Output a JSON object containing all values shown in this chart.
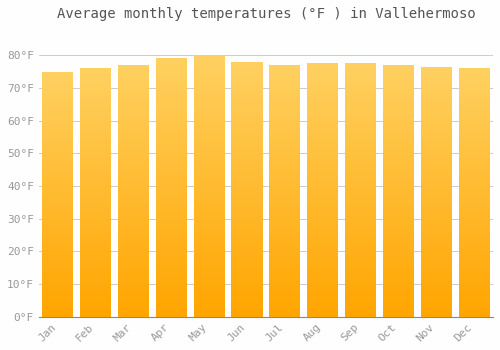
{
  "title": "Average monthly temperatures (°F ) in Vallehermoso",
  "months": [
    "Jan",
    "Feb",
    "Mar",
    "Apr",
    "May",
    "Jun",
    "Jul",
    "Aug",
    "Sep",
    "Oct",
    "Nov",
    "Dec"
  ],
  "values": [
    75.0,
    76.0,
    77.0,
    79.0,
    80.0,
    78.0,
    77.0,
    77.5,
    77.5,
    77.0,
    76.5,
    76.0
  ],
  "bar_color_top": "#FFD060",
  "bar_color_bottom": "#FFA500",
  "background_color": "#FEFEFE",
  "grid_color": "#CCCCCC",
  "ylim": [
    0,
    88
  ],
  "yticks": [
    0,
    10,
    20,
    30,
    40,
    50,
    60,
    70,
    80
  ],
  "ytick_labels": [
    "0°F",
    "10°F",
    "20°F",
    "30°F",
    "40°F",
    "50°F",
    "60°F",
    "70°F",
    "80°F"
  ],
  "title_fontsize": 10,
  "tick_fontsize": 8,
  "font_color": "#999999",
  "bar_width": 0.82
}
